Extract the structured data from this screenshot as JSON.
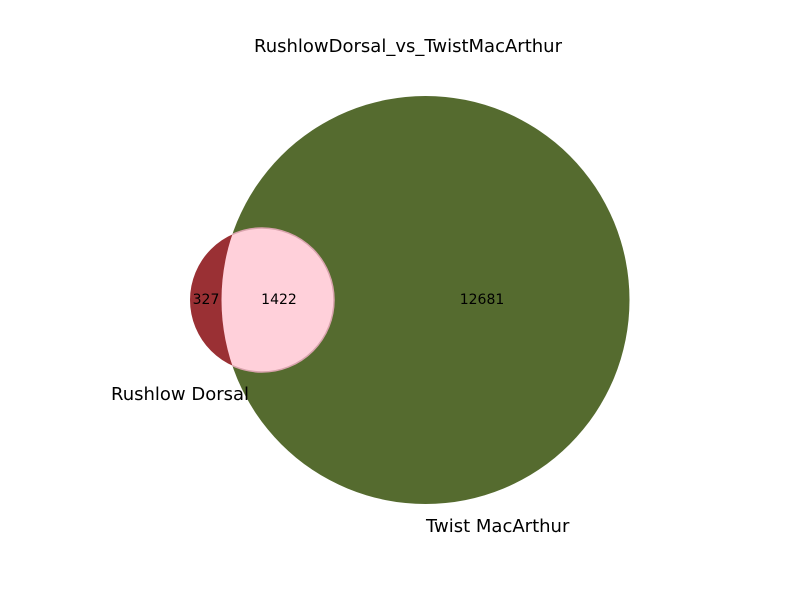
{
  "chart_data": {
    "type": "venn",
    "title": "RushlowDorsal_vs_TwistMacArthur",
    "sets": [
      {
        "name": "Rushlow Dorsal",
        "size": 1749,
        "color": "#9a3034"
      },
      {
        "name": "Twist MacArthur",
        "size": 14103,
        "color": "#556b2f"
      }
    ],
    "regions": [
      {
        "id": "only_a",
        "label": "327",
        "value": 327,
        "sets": [
          "Rushlow Dorsal"
        ]
      },
      {
        "id": "overlap",
        "label": "1422",
        "value": 1422,
        "sets": [
          "Rushlow Dorsal",
          "Twist MacArthur"
        ],
        "color": "#ffd0da"
      },
      {
        "id": "only_b",
        "label": "12681",
        "value": 12681,
        "sets": [
          "Twist MacArthur"
        ]
      }
    ]
  }
}
